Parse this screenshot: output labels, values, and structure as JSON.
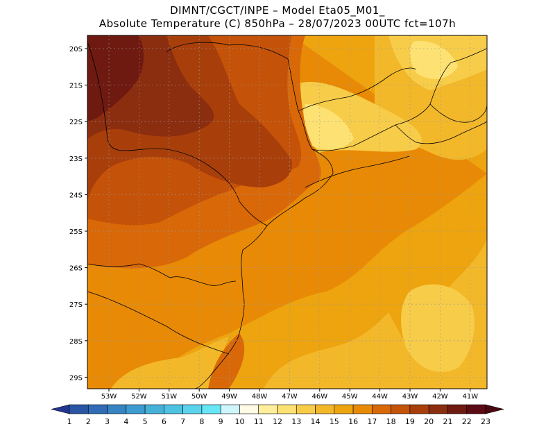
{
  "header": {
    "line1": "DIMNT/CGCT/INPE –  Model Eta05_M01_",
    "line2": "Absolute Temperature (C) 850hPa –  28/07/2023 00UTC fct=107h"
  },
  "map": {
    "lat_ticks": [
      "20S",
      "21S",
      "22S",
      "23S",
      "24S",
      "25S",
      "26S",
      "27S",
      "28S",
      "29S"
    ],
    "lon_ticks": [
      "53W",
      "52W",
      "51W",
      "50W",
      "49W",
      "48W",
      "47W",
      "46W",
      "45W",
      "44W",
      "43W",
      "42W",
      "41W"
    ],
    "grid": true
  },
  "colorbar": {
    "labels": [
      "1",
      "2",
      "3",
      "4",
      "5",
      "6",
      "7",
      "8",
      "9",
      "10",
      "11",
      "12",
      "13",
      "14",
      "15",
      "16",
      "17",
      "18",
      "19",
      "20",
      "21",
      "22",
      "23"
    ],
    "colors": [
      "#23358f",
      "#2a55a5",
      "#2f6cb5",
      "#3684c2",
      "#3d9bcf",
      "#45b1d8",
      "#4dc3e1",
      "#5ad3ec",
      "#66e6f6",
      "#cff6fb",
      "#fffbe4",
      "#ffef9a",
      "#fde273",
      "#f7cc49",
      "#f2b82a",
      "#eea40e",
      "#e88a05",
      "#d96808",
      "#c45208",
      "#a83f0b",
      "#8b2d0f",
      "#6e1a11",
      "#5c0a14",
      "#4a0810"
    ]
  }
}
